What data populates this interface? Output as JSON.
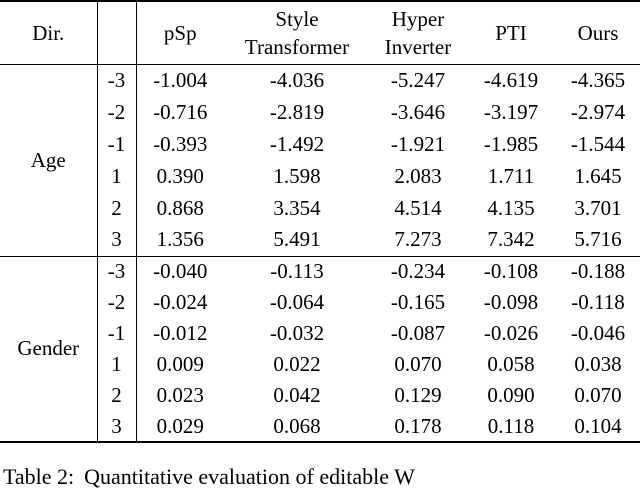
{
  "table": {
    "header": {
      "dir_label": "Dir.",
      "cols": [
        "pSp",
        "Style Transformer",
        "Hyper Inverter",
        "PTI",
        "Ours"
      ]
    },
    "sections": [
      {
        "label": "Age",
        "rows": [
          {
            "dir": "-3",
            "values": [
              "-1.004",
              "-4.036",
              "-5.247",
              "-4.619",
              "-4.365"
            ]
          },
          {
            "dir": "-2",
            "values": [
              "-0.716",
              "-2.819",
              "-3.646",
              "-3.197",
              "-2.974"
            ]
          },
          {
            "dir": "-1",
            "values": [
              "-0.393",
              "-1.492",
              "-1.921",
              "-1.985",
              "-1.544"
            ]
          },
          {
            "dir": "1",
            "values": [
              "0.390",
              "1.598",
              "2.083",
              "1.711",
              "1.645"
            ]
          },
          {
            "dir": "2",
            "values": [
              "0.868",
              "3.354",
              "4.514",
              "4.135",
              "3.701"
            ]
          },
          {
            "dir": "3",
            "values": [
              "1.356",
              "5.491",
              "7.273",
              "7.342",
              "5.716"
            ]
          }
        ]
      },
      {
        "label": "Gender",
        "rows": [
          {
            "dir": "-3",
            "values": [
              "-0.040",
              "-0.113",
              "-0.234",
              "-0.108",
              "-0.188"
            ]
          },
          {
            "dir": "-2",
            "values": [
              "-0.024",
              "-0.064",
              "-0.165",
              "-0.098",
              "-0.118"
            ]
          },
          {
            "dir": "-1",
            "values": [
              "-0.012",
              "-0.032",
              "-0.087",
              "-0.026",
              "-0.046"
            ]
          },
          {
            "dir": "1",
            "values": [
              "0.009",
              "0.022",
              "0.070",
              "0.058",
              "0.038"
            ]
          },
          {
            "dir": "2",
            "values": [
              "0.023",
              "0.042",
              "0.129",
              "0.090",
              "0.070"
            ]
          },
          {
            "dir": "3",
            "values": [
              "0.029",
              "0.068",
              "0.178",
              "0.118",
              "0.104"
            ]
          }
        ]
      }
    ]
  },
  "caption": {
    "label": "Table 2:",
    "text": "Quantitative evaluation of editable W"
  }
}
